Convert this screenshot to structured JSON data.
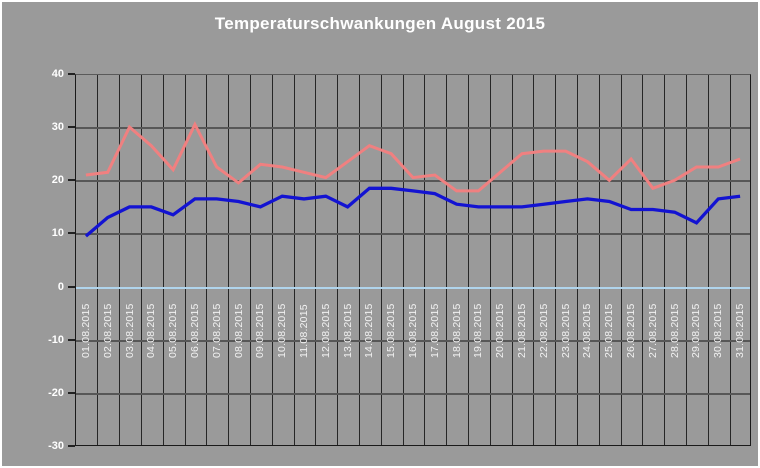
{
  "colors": {
    "page_border": "#ffffff",
    "chart_background": "#9a9a9a",
    "title_text": "#ffffff",
    "axis_label_text": "#ffffff",
    "grid_horizontal": "#575757",
    "grid_vertical": "#262626",
    "zero_line": "#b0d4ec",
    "plot_border": "#1a1a1a",
    "red_series": "#f08080",
    "blue_series": "#1313d2"
  },
  "chart_data": {
    "type": "line",
    "title": "Temperaturschwankungen August 2015",
    "categories": [
      "01.08.2015",
      "02.08.2015",
      "03.08.2015",
      "04.08.2015",
      "05.08.2015",
      "06.08.2015",
      "07.08.2015",
      "08.08.2015",
      "09.08.2015",
      "10.08.2015",
      "11.08.2015",
      "12.08.2015",
      "13.08.2015",
      "14.08.2015",
      "15.08.2015",
      "16.08.2015",
      "17.08.2015",
      "18.08.2015",
      "19.08.2015",
      "20.08.2015",
      "21.08.2015",
      "22.08.2015",
      "23.08.2015",
      "24.08.2015",
      "25.08.2015",
      "26.08.2015",
      "27.08.2015",
      "28.08.2015",
      "29.08.2015",
      "30.08.2015",
      "31.08.2015"
    ],
    "series": [
      {
        "name": "red-series",
        "color": "#f08080",
        "stroke_width": 3,
        "values": [
          21,
          21.5,
          30,
          26.5,
          22,
          30.5,
          22.5,
          19.5,
          23,
          22.5,
          21.5,
          20.5,
          23.5,
          26.5,
          25,
          20.5,
          21,
          18,
          18,
          21.5,
          25,
          25.5,
          25.5,
          23.5,
          20,
          24,
          18.5,
          20,
          22.5,
          22.5,
          24
        ]
      },
      {
        "name": "blue-series",
        "color": "#1313d2",
        "stroke_width": 3.3,
        "values": [
          9.5,
          13,
          15,
          15,
          13.5,
          16.5,
          16.5,
          16,
          15,
          17,
          16.5,
          17,
          15,
          18.5,
          18.5,
          18,
          17.5,
          15.5,
          15,
          15,
          15,
          15.5,
          16,
          16.5,
          16,
          14.5,
          14.5,
          14,
          12,
          16.5,
          17
        ]
      }
    ],
    "ylim": [
      -30,
      40
    ],
    "yticks": [
      40,
      30,
      20,
      10,
      0,
      -10,
      -20,
      -30
    ],
    "xlabel": "",
    "ylabel": "",
    "legend": "none",
    "grid": "vertical line per day, horizontal line every 10 units, zero line highlighted light blue"
  }
}
